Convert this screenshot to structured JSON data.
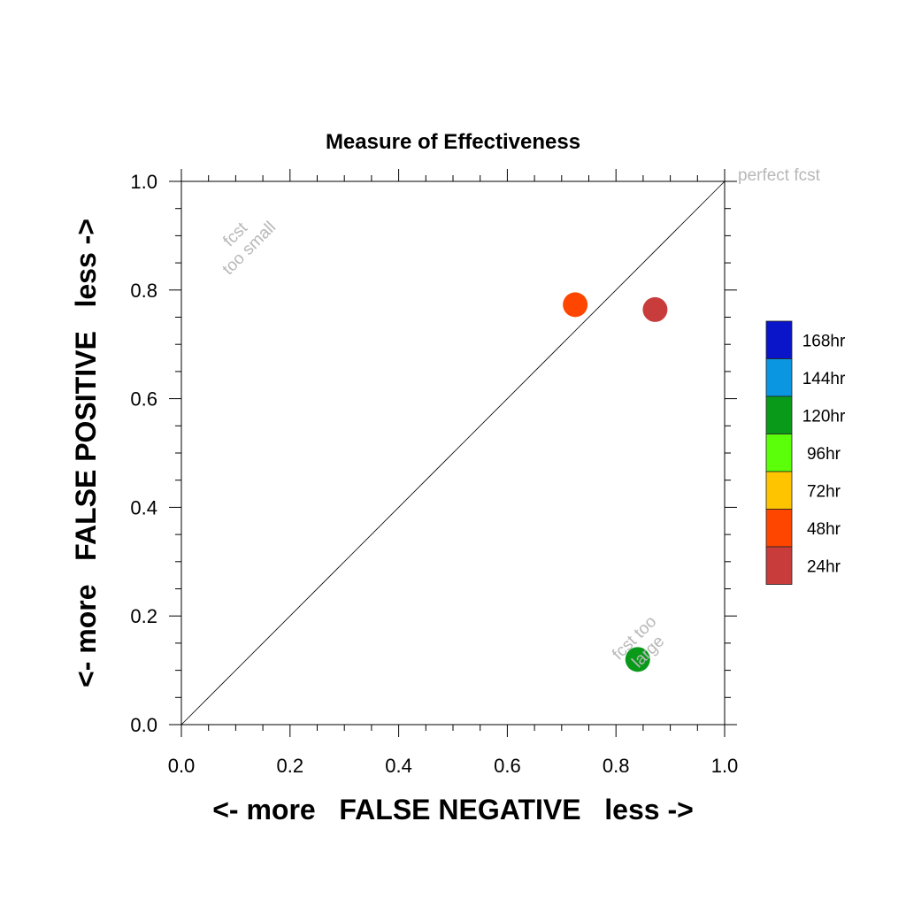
{
  "chart_data": {
    "type": "scatter",
    "title": "Measure of Effectiveness",
    "xlabel": "<- more   FALSE NEGATIVE   less ->",
    "ylabel": "<- more   FALSE POSITIVE   less ->",
    "xlim": [
      0,
      1
    ],
    "ylim": [
      0,
      1
    ],
    "x_ticks": [
      "0.0",
      "0.2",
      "0.4",
      "0.6",
      "0.8",
      "1.0"
    ],
    "y_ticks": [
      "0.0",
      "0.2",
      "0.4",
      "0.6",
      "0.8",
      "1.0"
    ],
    "grid": false,
    "diagonal_line": true,
    "annotations": {
      "perfect": "perfect fcst",
      "small_1": "fcst",
      "small_2": "too small",
      "large_1": "fcst too",
      "large_2": "large"
    },
    "legend": {
      "placement": "right",
      "entries": [
        {
          "label": "168hr",
          "color": "#0a14c8"
        },
        {
          "label": "144hr",
          "color": "#0a96e0"
        },
        {
          "label": "120hr",
          "color": "#0a9a1a"
        },
        {
          "label": "96hr",
          "color": "#5cff0a"
        },
        {
          "label": "72hr",
          "color": "#ffc400"
        },
        {
          "label": "48hr",
          "color": "#ff4600"
        },
        {
          "label": "24hr",
          "color": "#c83c3c"
        }
      ]
    },
    "points": [
      {
        "series": "48hr",
        "x": 0.725,
        "y": 0.773,
        "color": "#ff4600"
      },
      {
        "series": "24hr",
        "x": 0.872,
        "y": 0.764,
        "color": "#c83c3c"
      },
      {
        "series": "120hr",
        "x": 0.84,
        "y": 0.12,
        "color": "#0a9a1a"
      }
    ]
  }
}
